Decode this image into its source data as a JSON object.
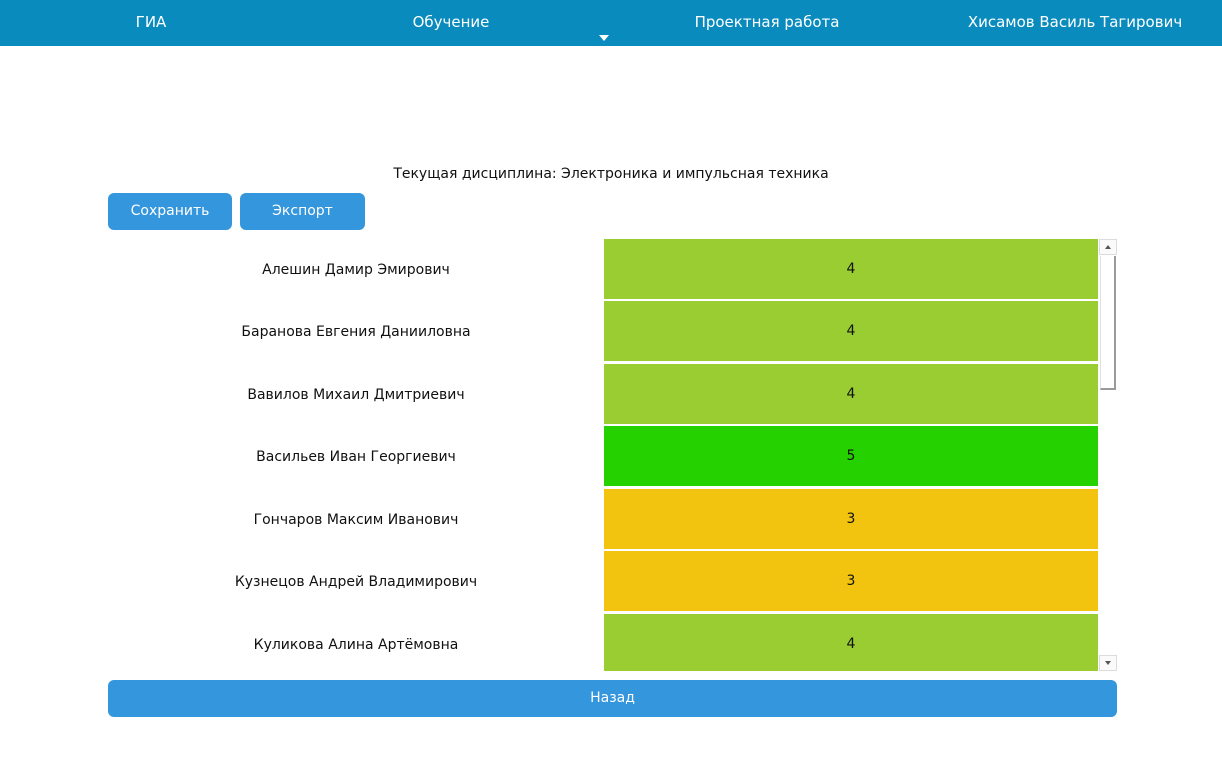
{
  "nav": {
    "items": [
      {
        "label": "ГИА"
      },
      {
        "label": "Обучение"
      },
      {
        "label": "Проектная работа"
      }
    ],
    "user": "Хисамов Василь Тагирович"
  },
  "discipline_line": "Текущая дисциплина: Электроника и импульсная техника",
  "toolbar": {
    "save_label": "Сохранить",
    "export_label": "Экспорт"
  },
  "grade_colors": {
    "5": "#26d100",
    "4": "#9acd32",
    "3": "#f2c40f"
  },
  "students": [
    {
      "name": "Алешин Дамир Эмирович",
      "grade": "4"
    },
    {
      "name": "Баранова Евгения Данииловна",
      "grade": "4"
    },
    {
      "name": "Вавилов Михаил Дмитриевич",
      "grade": "4"
    },
    {
      "name": "Васильев Иван Георгиевич",
      "grade": "5"
    },
    {
      "name": "Гончаров Максим Иванович",
      "grade": "3"
    },
    {
      "name": "Кузнецов Андрей Владимирович",
      "grade": "3"
    },
    {
      "name": "Куликова Алина Артёмовна",
      "grade": "4"
    }
  ],
  "back_label": "Назад"
}
